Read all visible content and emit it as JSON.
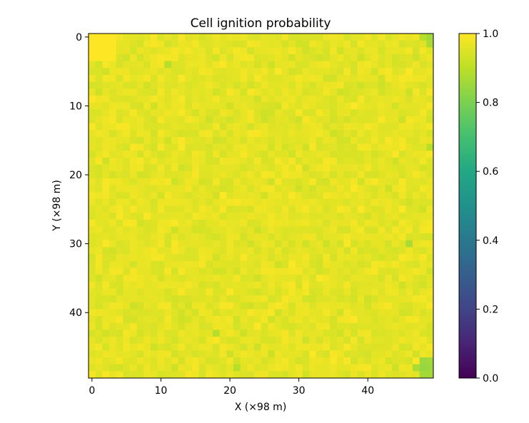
{
  "chart_data": {
    "type": "heatmap",
    "title": "Cell ignition probability",
    "xlabel": "X (×98 m)",
    "ylabel": "Y (×98 m)",
    "grid_size": [
      50,
      50
    ],
    "x_ticks": [
      0,
      10,
      20,
      30,
      40
    ],
    "x_tick_labels": [
      "0",
      "10",
      "20",
      "30",
      "40"
    ],
    "y_ticks": [
      0,
      10,
      20,
      30,
      40
    ],
    "y_tick_labels": [
      "0",
      "10",
      "20",
      "30",
      "40"
    ],
    "colormap": "viridis",
    "colorbar": {
      "range": [
        0.0,
        1.0
      ],
      "ticks": [
        0.0,
        0.2,
        0.4,
        0.6,
        0.8,
        1.0
      ],
      "tick_labels": [
        "0.0",
        "0.2",
        "0.4",
        "0.6",
        "0.8",
        "1.0"
      ]
    },
    "value_summary": {
      "typical_min": 0.88,
      "typical_max": 1.0,
      "mean": 0.955
    },
    "notable_cells": [
      {
        "x": 0,
        "y": 0,
        "value": 1.0
      },
      {
        "x": 1,
        "y": 0,
        "value": 1.0
      },
      {
        "x": 2,
        "y": 0,
        "value": 1.0
      },
      {
        "x": 3,
        "y": 0,
        "value": 1.0
      },
      {
        "x": 0,
        "y": 1,
        "value": 1.0
      },
      {
        "x": 1,
        "y": 1,
        "value": 1.0
      },
      {
        "x": 2,
        "y": 1,
        "value": 1.0
      },
      {
        "x": 3,
        "y": 1,
        "value": 1.0
      },
      {
        "x": 0,
        "y": 2,
        "value": 1.0
      },
      {
        "x": 1,
        "y": 2,
        "value": 1.0
      },
      {
        "x": 2,
        "y": 2,
        "value": 1.0
      },
      {
        "x": 3,
        "y": 2,
        "value": 1.0
      },
      {
        "x": 0,
        "y": 3,
        "value": 1.0
      },
      {
        "x": 1,
        "y": 3,
        "value": 1.0
      },
      {
        "x": 2,
        "y": 3,
        "value": 1.0
      },
      {
        "x": 3,
        "y": 3,
        "value": 1.0
      },
      {
        "x": 49,
        "y": 0,
        "value": 0.86
      },
      {
        "x": 49,
        "y": 1,
        "value": 0.87
      },
      {
        "x": 48,
        "y": 0,
        "value": 0.89
      },
      {
        "x": 47,
        "y": 48,
        "value": 0.87
      },
      {
        "x": 48,
        "y": 47,
        "value": 0.85
      },
      {
        "x": 49,
        "y": 47,
        "value": 0.86
      },
      {
        "x": 48,
        "y": 48,
        "value": 0.84
      },
      {
        "x": 49,
        "y": 48,
        "value": 0.85
      },
      {
        "x": 48,
        "y": 49,
        "value": 0.86
      },
      {
        "x": 49,
        "y": 49,
        "value": 0.86
      },
      {
        "x": 46,
        "y": 30,
        "value": 0.87
      },
      {
        "x": 18,
        "y": 43,
        "value": 0.89
      },
      {
        "x": 21,
        "y": 48,
        "value": 0.89
      },
      {
        "x": 11,
        "y": 4,
        "value": 0.89
      },
      {
        "x": 49,
        "y": 16,
        "value": 0.89
      }
    ]
  }
}
